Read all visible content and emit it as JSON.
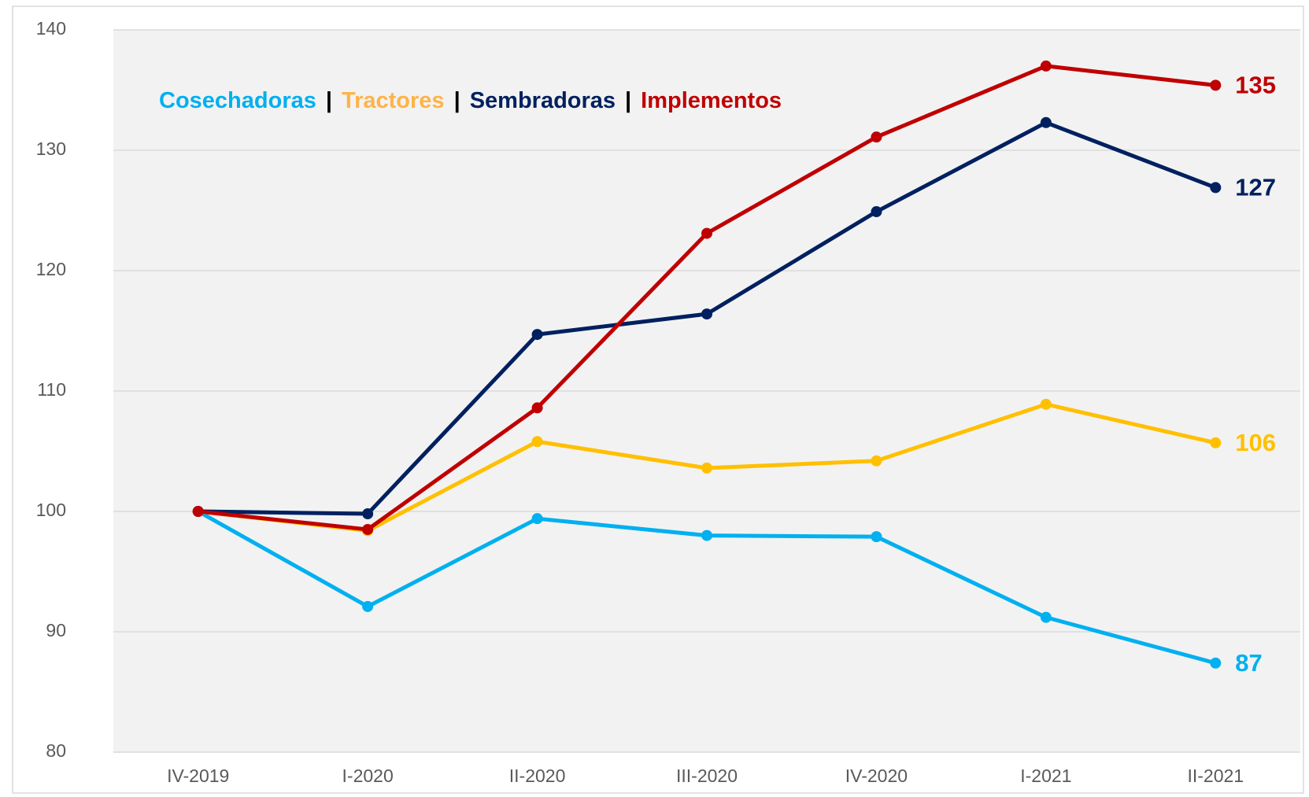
{
  "chart_data": {
    "type": "line",
    "categories": [
      "IV-2019",
      "I-2020",
      "II-2020",
      "III-2020",
      "IV-2020",
      "I-2021",
      "II-2021"
    ],
    "legend_separator": "|",
    "series": [
      {
        "name": "Cosechadoras",
        "color": "#00b0f0",
        "values": [
          100,
          92.1,
          99.4,
          98.0,
          97.9,
          91.2,
          87.4
        ],
        "value_labels": [
          null,
          null,
          null,
          null,
          null,
          null,
          "87"
        ]
      },
      {
        "name": "Tractores",
        "color": "#ffc000",
        "legend_color": "#ffb347",
        "values": [
          100,
          98.4,
          105.8,
          103.6,
          104.2,
          108.9,
          105.7
        ],
        "value_labels": [
          null,
          null,
          null,
          null,
          null,
          null,
          "106"
        ]
      },
      {
        "name": "Sembradoras",
        "color": "#002060",
        "values": [
          100,
          99.8,
          114.7,
          116.4,
          124.9,
          132.3,
          126.9
        ],
        "value_labels": [
          null,
          null,
          null,
          null,
          null,
          null,
          "127"
        ]
      },
      {
        "name": "Implementos",
        "color": "#c00000",
        "values": [
          100,
          98.5,
          108.6,
          123.1,
          131.1,
          137.0,
          135.4
        ],
        "value_labels": [
          null,
          null,
          null,
          null,
          null,
          null,
          "135"
        ]
      }
    ],
    "ylim": [
      80,
      140
    ],
    "yticks": [
      80,
      90,
      100,
      110,
      120,
      130,
      140
    ],
    "grid": true
  }
}
